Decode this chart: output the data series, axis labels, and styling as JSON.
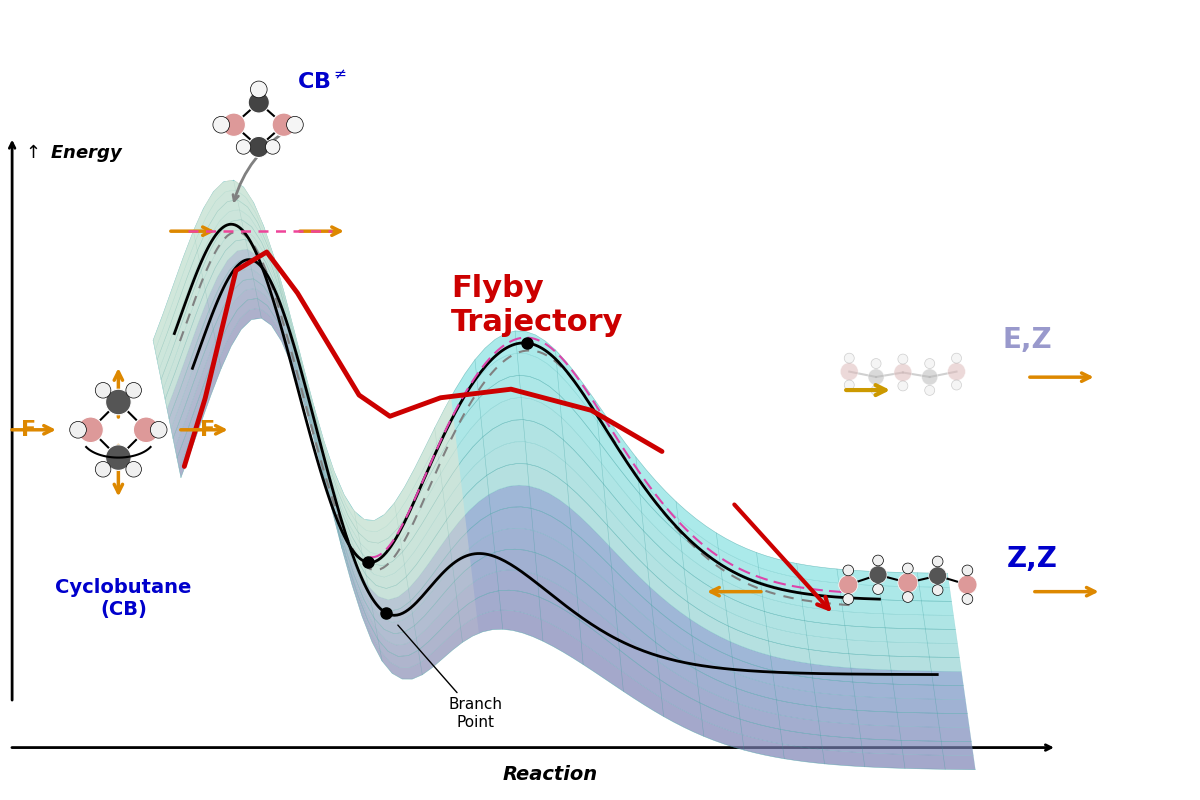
{
  "background_color": "#ffffff",
  "flyby_text": "Flyby\nTrajectory",
  "flyby_color": "#cc0000",
  "flyby_fontsize": 22,
  "cb_color": "#0000cc",
  "cb_fontsize": 16,
  "cyclobutane_text": "Cyclobutane\n(CB)",
  "cyclobutane_color": "#0000cc",
  "cyclobutane_fontsize": 14,
  "ez_text": "E,Z",
  "ez_color": "#9999cc",
  "ez_fontsize": 20,
  "zz_text": "Z,Z",
  "zz_color": "#0000cc",
  "zz_fontsize": 20,
  "branch_point_text": "Branch\nPoint",
  "branch_point_fontsize": 11,
  "f_label_color": "#dd8800",
  "f_label_fontsize": 16,
  "arrow_color": "#dd8800",
  "reaction_label": "Reaction",
  "energy_label": "Energy"
}
